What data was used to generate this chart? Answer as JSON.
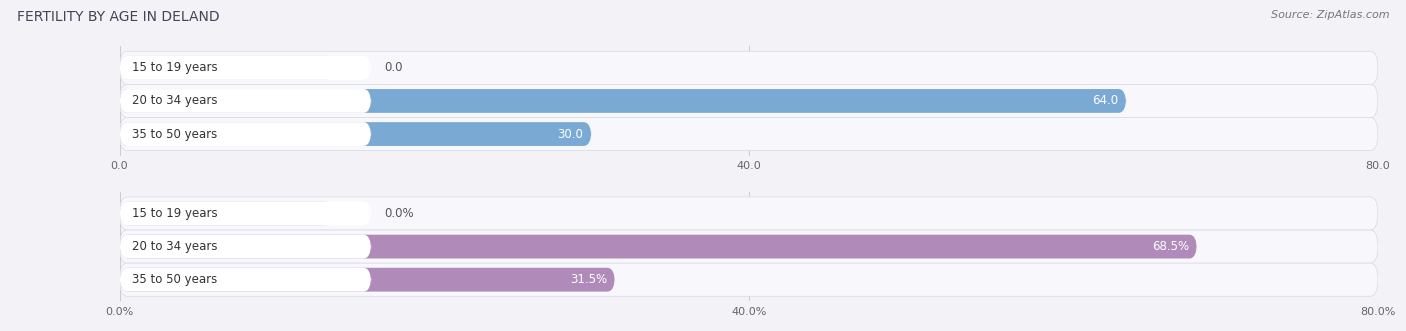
{
  "title": "FERTILITY BY AGE IN DELAND",
  "source": "Source: ZipAtlas.com",
  "top_chart": {
    "categories": [
      "15 to 19 years",
      "20 to 34 years",
      "35 to 50 years"
    ],
    "values": [
      0.0,
      64.0,
      30.0
    ],
    "bar_color": "#7aaad4",
    "bar_color_light": "#b8cfe8",
    "xlim": [
      0,
      80
    ],
    "xticks": [
      0.0,
      40.0,
      80.0
    ],
    "tick_labels": [
      "0.0",
      "40.0",
      "80.0"
    ]
  },
  "bottom_chart": {
    "categories": [
      "15 to 19 years",
      "20 to 34 years",
      "35 to 50 years"
    ],
    "values": [
      0.0,
      68.5,
      31.5
    ],
    "bar_color": "#b08ab8",
    "bar_color_light": "#d4b8d8",
    "xlim": [
      0,
      80
    ],
    "xticks": [
      0.0,
      40.0,
      80.0
    ],
    "tick_labels": [
      "0.0%",
      "40.0%",
      "80.0%"
    ]
  },
  "background_color": "#f2f2f7",
  "bar_bg_color": "#e4e4ee",
  "bar_row_bg": "#f8f8fc",
  "label_area_color": "#ffffff",
  "title_fontsize": 10,
  "source_fontsize": 8,
  "label_fontsize": 8.5,
  "value_fontsize": 8.5,
  "tick_fontsize": 8
}
